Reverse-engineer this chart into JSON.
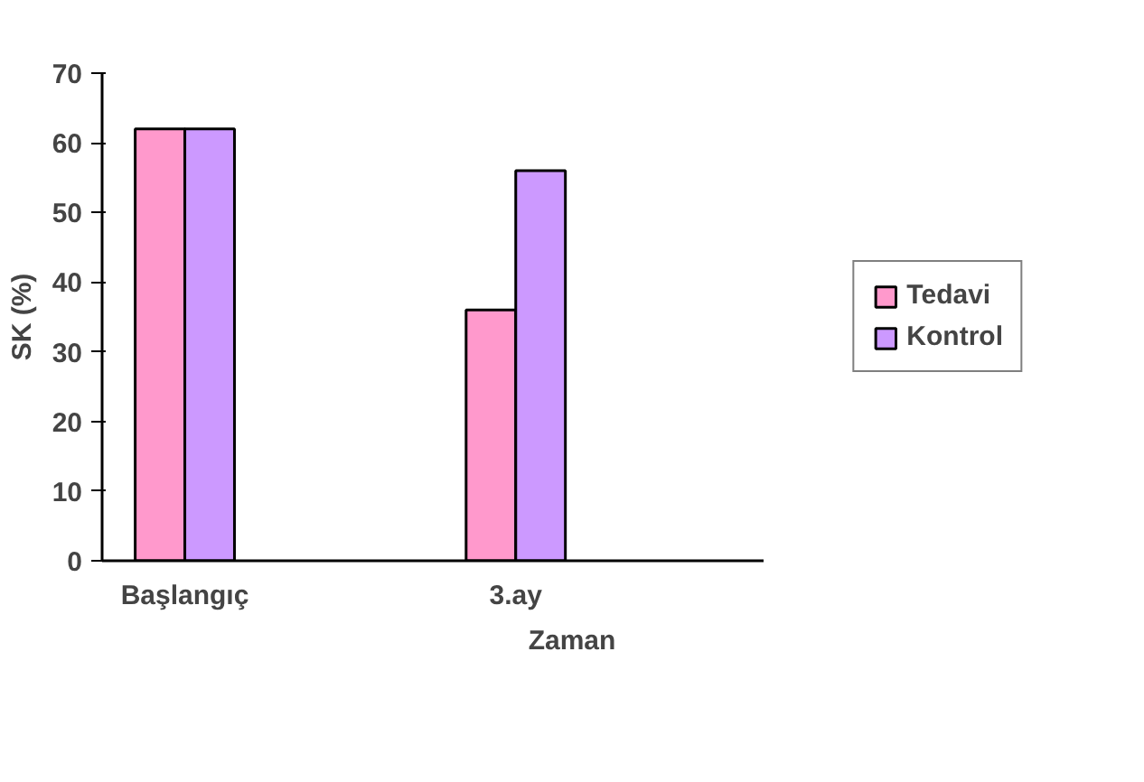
{
  "chart_data": {
    "type": "bar",
    "xlabel": "Zaman",
    "ylabel": "SK (%)",
    "categories": [
      "Başlangıç",
      null,
      "3.ay",
      null
    ],
    "series": [
      {
        "name": "Tedavi",
        "color": "#ff99cc",
        "values": [
          62,
          null,
          36,
          null
        ]
      },
      {
        "name": "Kontrol",
        "color": "#cc99ff",
        "values": [
          62,
          null,
          56,
          null
        ]
      }
    ],
    "ylim": [
      0,
      70
    ],
    "yticks": [
      0,
      10,
      20,
      30,
      40,
      50,
      60,
      70
    ],
    "grid": false,
    "legend": "right"
  }
}
